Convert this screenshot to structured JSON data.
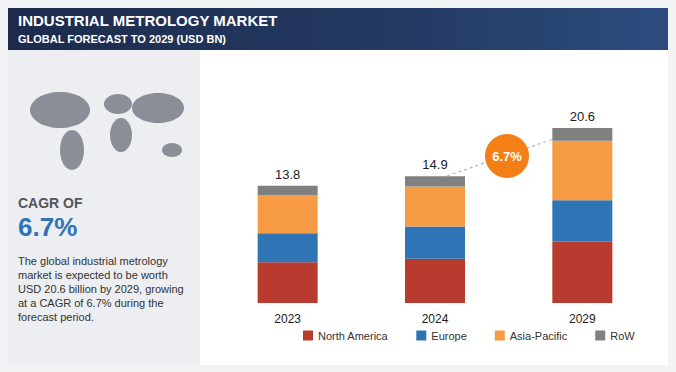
{
  "chart_data": {
    "type": "bar",
    "title": "INDUSTRIAL METROLOGY MARKET",
    "subtitle": "GLOBAL FORECAST TO 2029 (USD BN)",
    "categories": [
      "2023",
      "2024",
      "2029"
    ],
    "series": [
      {
        "name": "North America",
        "color": "#b93a2f",
        "values": [
          4.8,
          5.2,
          7.2
        ]
      },
      {
        "name": "Europe",
        "color": "#2f74b5",
        "values": [
          3.4,
          3.8,
          4.9
        ]
      },
      {
        "name": "Asia-Pacific",
        "color": "#f79b45",
        "values": [
          4.5,
          4.7,
          7.0
        ]
      },
      {
        "name": "RoW",
        "color": "#808080",
        "values": [
          1.1,
          1.2,
          1.5
        ]
      }
    ],
    "totals": [
      13.8,
      14.9,
      20.6
    ],
    "stacked": true,
    "ylim": [
      0,
      24
    ],
    "tick_labels": "x",
    "grid": false,
    "legend": "bottom",
    "annotations": {
      "bubble": "6.7%",
      "cagr_label": "CAGR OF",
      "cagr_value": "6.7%",
      "description": "The global industrial metrology market is expected to be worth USD 20.6 billion by 2029, growing at a CAGR of 6.7% during the forecast period."
    }
  }
}
